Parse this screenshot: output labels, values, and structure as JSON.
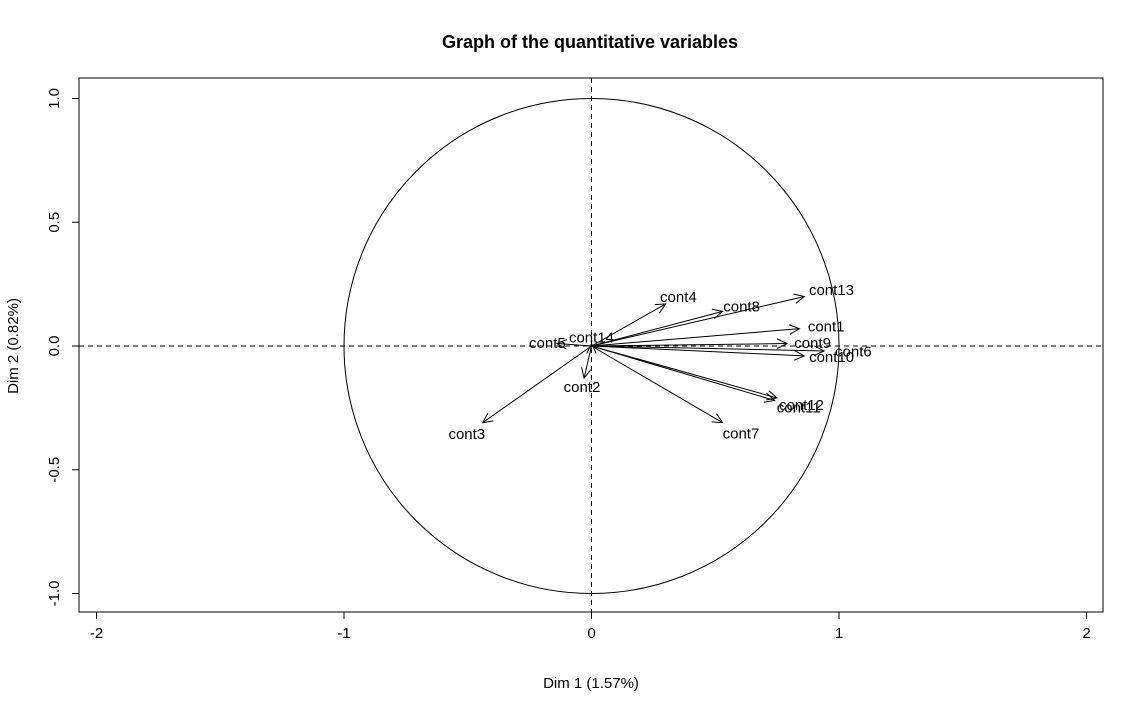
{
  "chart_data": {
    "type": "scatter",
    "subtype": "variable-correlation-circle",
    "title": "Graph of the quantitative variables",
    "xlabel": "Dim 1 (1.57%)",
    "ylabel": "Dim 2 (0.82%)",
    "xlim": [
      -2,
      2
    ],
    "ylim": [
      -1,
      1
    ],
    "xticks": [
      "-2",
      "-1",
      "0",
      "1",
      "2"
    ],
    "yticks": [
      "-1.0",
      "-0.5",
      "0.0",
      "0.5",
      "1.0"
    ],
    "grid": false,
    "reference_lines": {
      "x": 0,
      "y": 0,
      "style": "dashed"
    },
    "unit_circle": true,
    "arrow_color": "#000000",
    "variables": [
      {
        "name": "cont1",
        "x": 0.84,
        "y": 0.07
      },
      {
        "name": "cont2",
        "x": -0.03,
        "y": -0.13
      },
      {
        "name": "cont3",
        "x": -0.44,
        "y": -0.31
      },
      {
        "name": "cont4",
        "x": 0.3,
        "y": 0.17
      },
      {
        "name": "cont5",
        "x": -0.14,
        "y": 0.01
      },
      {
        "name": "cont6",
        "x": 0.94,
        "y": -0.02
      },
      {
        "name": "cont7",
        "x": 0.53,
        "y": -0.31
      },
      {
        "name": "cont8",
        "x": 0.53,
        "y": 0.14
      },
      {
        "name": "cont9",
        "x": 0.79,
        "y": 0.01
      },
      {
        "name": "cont10",
        "x": 0.86,
        "y": -0.04
      },
      {
        "name": "cont11",
        "x": 0.74,
        "y": -0.22
      },
      {
        "name": "cont12",
        "x": 0.75,
        "y": -0.21
      },
      {
        "name": "cont13",
        "x": 0.86,
        "y": 0.2
      },
      {
        "name": "cont14",
        "x": 0.0,
        "y": 0.01
      }
    ]
  }
}
